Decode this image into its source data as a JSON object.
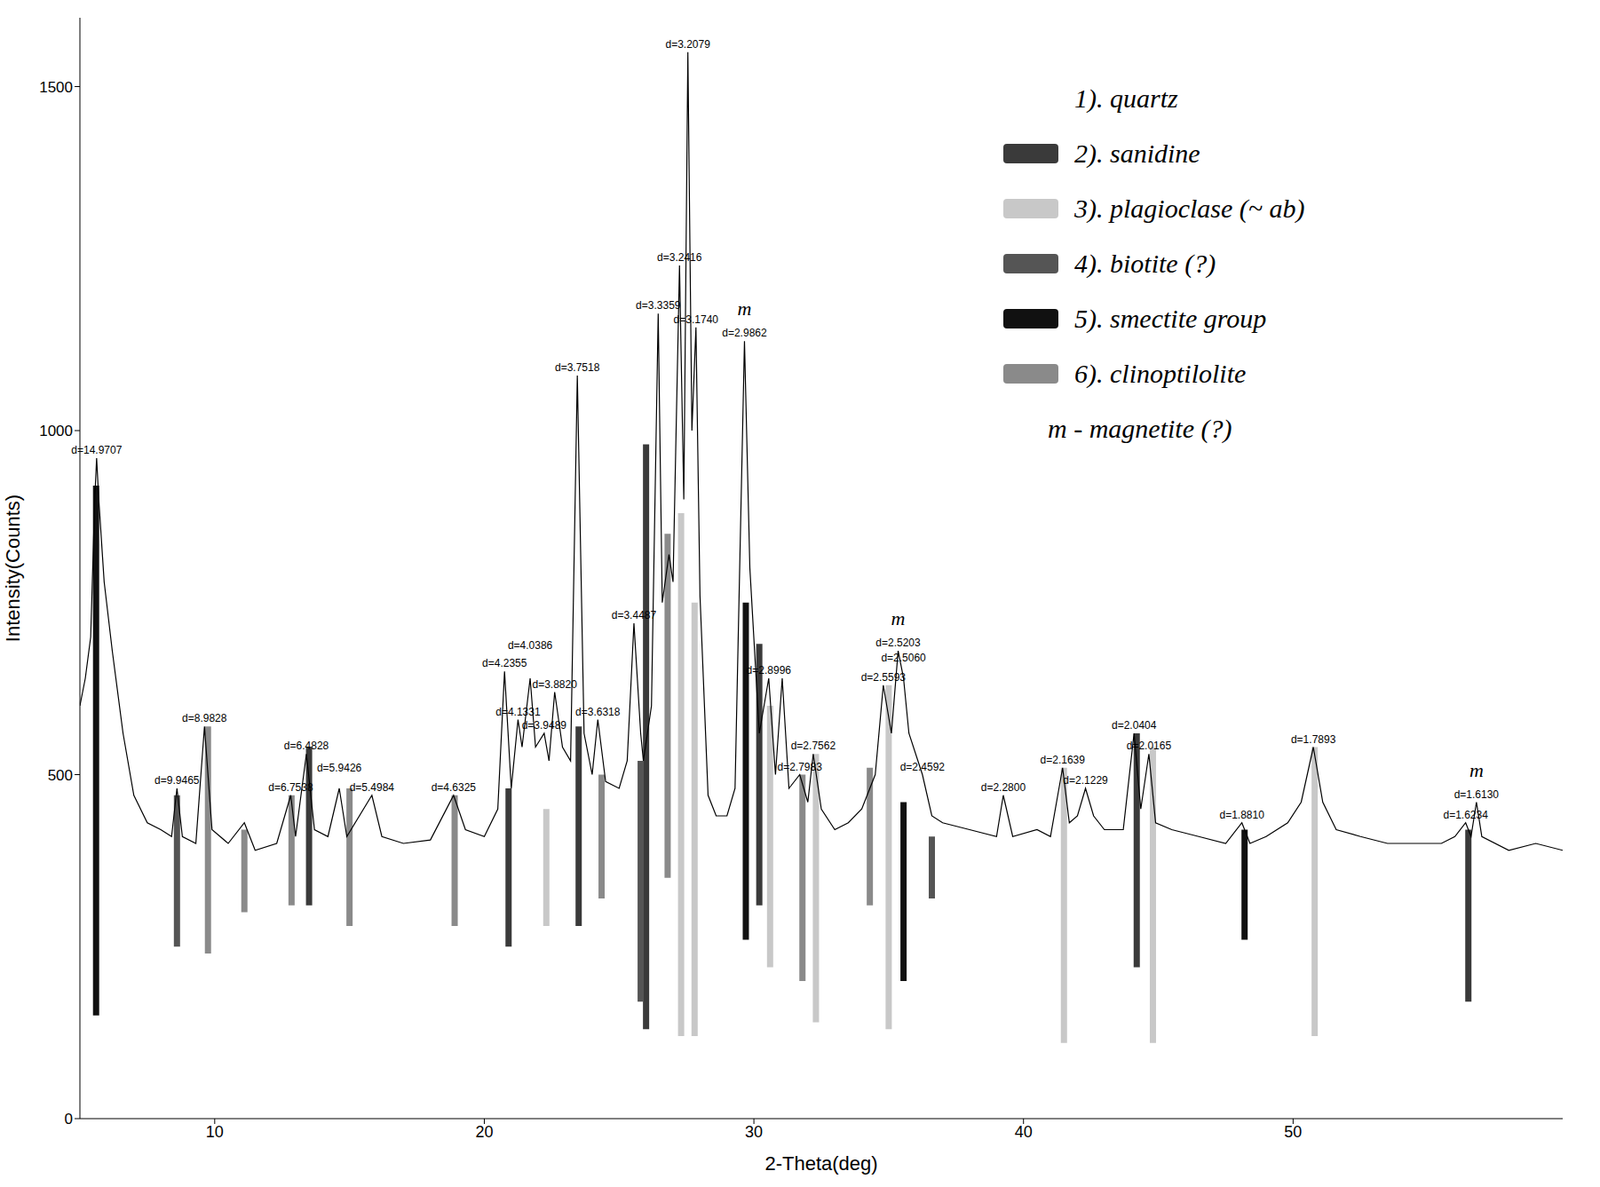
{
  "chart_data": {
    "type": "line",
    "x_label": "2-Theta(deg)",
    "y_label": "Intensity(Counts)",
    "xlim": [
      5,
      60
    ],
    "xticks": [
      10,
      20,
      30,
      40,
      50
    ],
    "ylim": [
      0,
      1600
    ],
    "yticks": [
      0,
      500,
      1000,
      1500
    ],
    "color": "#000000",
    "legend": "upper right",
    "x": [
      5.0,
      5.2,
      5.4,
      5.55,
      5.62,
      5.7,
      5.9,
      6.2,
      6.6,
      7.0,
      7.5,
      8.0,
      8.4,
      8.6,
      8.8,
      9.3,
      9.62,
      9.9,
      10.5,
      11.1,
      11.5,
      12.3,
      12.82,
      13.0,
      13.4,
      13.7,
      14.2,
      14.62,
      14.9,
      15.83,
      16.2,
      17.0,
      18.0,
      18.86,
      19.3,
      20.0,
      20.5,
      20.75,
      21.0,
      21.25,
      21.4,
      21.7,
      21.9,
      22.22,
      22.4,
      22.61,
      22.9,
      23.2,
      23.45,
      23.7,
      24.0,
      24.21,
      24.5,
      25.0,
      25.3,
      25.55,
      25.8,
      25.9,
      26.2,
      26.45,
      26.6,
      26.85,
      27.0,
      27.24,
      27.4,
      27.55,
      27.7,
      27.85,
      28.0,
      28.3,
      28.6,
      29.0,
      29.3,
      29.65,
      29.85,
      30.2,
      30.55,
      30.8,
      31.05,
      31.3,
      31.7,
      32.0,
      32.2,
      32.5,
      33.0,
      33.5,
      34.0,
      34.5,
      34.8,
      35.1,
      35.35,
      35.55,
      35.75,
      36.25,
      36.6,
      37.0,
      38.0,
      39.0,
      39.25,
      39.6,
      40.5,
      41.0,
      41.45,
      41.7,
      42.0,
      42.3,
      42.6,
      43.0,
      43.7,
      44.1,
      44.35,
      44.65,
      44.9,
      45.5,
      46.5,
      47.5,
      48.1,
      48.4,
      49.0,
      49.8,
      50.3,
      50.75,
      51.1,
      51.6,
      52.5,
      53.5,
      54.5,
      55.5,
      56.0,
      56.4,
      56.6,
      56.8,
      57.0,
      58.0,
      59.0,
      60.0
    ],
    "values": [
      600,
      640,
      700,
      900,
      960,
      900,
      780,
      680,
      560,
      470,
      430,
      420,
      410,
      480,
      410,
      400,
      570,
      420,
      400,
      430,
      390,
      400,
      470,
      410,
      530,
      420,
      410,
      480,
      410,
      470,
      410,
      400,
      405,
      470,
      420,
      410,
      450,
      650,
      480,
      580,
      540,
      640,
      540,
      560,
      520,
      620,
      540,
      520,
      1080,
      560,
      500,
      580,
      490,
      480,
      520,
      720,
      560,
      520,
      600,
      1170,
      750,
      820,
      780,
      1240,
      900,
      1550,
      1000,
      1150,
      760,
      470,
      440,
      440,
      480,
      1130,
      800,
      560,
      640,
      500,
      640,
      480,
      500,
      460,
      530,
      450,
      420,
      430,
      450,
      500,
      630,
      560,
      680,
      640,
      560,
      500,
      440,
      430,
      420,
      410,
      470,
      410,
      420,
      410,
      510,
      430,
      440,
      480,
      440,
      420,
      420,
      560,
      450,
      530,
      430,
      420,
      410,
      400,
      430,
      400,
      410,
      430,
      460,
      540,
      460,
      420,
      410,
      400,
      400,
      400,
      410,
      430,
      410,
      460,
      410,
      390,
      400,
      390
    ],
    "peak_labels": [
      {
        "label": "d=14.9707",
        "x": 5.62,
        "y": 960
      },
      {
        "label": "d=9.9465",
        "x": 8.6,
        "y": 480
      },
      {
        "label": "d=8.9828",
        "x": 9.62,
        "y": 570
      },
      {
        "label": "d=6.7538",
        "x": 12.82,
        "y": 470
      },
      {
        "label": "d=6.4828",
        "x": 13.4,
        "y": 530
      },
      {
        "label": "d=5.9426",
        "x": 14.62,
        "y": 480
      },
      {
        "label": "d=5.4984",
        "x": 15.83,
        "y": 470
      },
      {
        "label": "d=4.6325",
        "x": 18.86,
        "y": 470
      },
      {
        "label": "d=4.2355",
        "x": 20.75,
        "y": 650
      },
      {
        "label": "d=4.1331",
        "x": 21.25,
        "y": 580
      },
      {
        "label": "d=4.0386",
        "x": 21.7,
        "y": 640
      },
      {
        "label": "d=3.9489",
        "x": 22.22,
        "y": 560
      },
      {
        "label": "d=3.8820",
        "x": 22.61,
        "y": 620
      },
      {
        "label": "d=3.7518",
        "x": 23.45,
        "y": 1080
      },
      {
        "label": "d=3.6318",
        "x": 24.21,
        "y": 580
      },
      {
        "label": "d=3.4487",
        "x": 25.55,
        "y": 720
      },
      {
        "label": "d=3.3359",
        "x": 26.45,
        "y": 1170
      },
      {
        "label": "d=3.2416",
        "x": 27.24,
        "y": 1240
      },
      {
        "label": "d=3.2079",
        "x": 27.55,
        "y": 1550
      },
      {
        "label": "d=3.1740",
        "x": 27.85,
        "y": 1150
      },
      {
        "label": "d=2.9862",
        "x": 29.65,
        "y": 1130
      },
      {
        "label": "d=2.8996",
        "x": 30.55,
        "y": 640
      },
      {
        "label": "d=2.7983",
        "x": 31.7,
        "y": 500
      },
      {
        "label": "d=2.7562",
        "x": 32.2,
        "y": 530
      },
      {
        "label": "d=2.5593",
        "x": 34.8,
        "y": 630
      },
      {
        "label": "d=2.5203",
        "x": 35.35,
        "y": 680
      },
      {
        "label": "d=2.5060",
        "x": 35.55,
        "y": 640
      },
      {
        "label": "d=2.4592",
        "x": 36.25,
        "y": 500
      },
      {
        "label": "d=2.2800",
        "x": 39.25,
        "y": 470
      },
      {
        "label": "d=2.1639",
        "x": 41.45,
        "y": 510
      },
      {
        "label": "d=2.1229",
        "x": 42.3,
        "y": 480
      },
      {
        "label": "d=2.0404",
        "x": 44.1,
        "y": 560
      },
      {
        "label": "d=2.0165",
        "x": 44.65,
        "y": 530
      },
      {
        "label": "d=1.8810",
        "x": 48.1,
        "y": 430
      },
      {
        "label": "d=1.7893",
        "x": 50.75,
        "y": 540
      },
      {
        "label": "d=1.6234",
        "x": 56.4,
        "y": 430
      },
      {
        "label": "d=1.6130",
        "x": 56.8,
        "y": 460
      }
    ],
    "annotations": [
      {
        "text": "m",
        "x": 29.65,
        "y": 1130
      },
      {
        "text": "m",
        "x": 35.35,
        "y": 680
      },
      {
        "text": "m",
        "x": 56.8,
        "y": 460
      }
    ],
    "phases": [
      {
        "name": "1). quartz"
      },
      {
        "name": "2). sanidine",
        "color": "#3a3a3a",
        "sticks": [
          [
            13.5,
            310,
            540
          ],
          [
            20.9,
            250,
            480
          ],
          [
            23.5,
            280,
            570
          ],
          [
            26.0,
            130,
            980
          ],
          [
            30.2,
            310,
            690
          ],
          [
            44.2,
            220,
            560
          ],
          [
            56.5,
            170,
            420
          ]
        ]
      },
      {
        "name": "3). plagioclase (~ ab)",
        "color": "#c8c8c8",
        "sticks": [
          [
            22.3,
            280,
            450
          ],
          [
            27.3,
            120,
            880
          ],
          [
            27.8,
            120,
            750
          ],
          [
            30.6,
            220,
            600
          ],
          [
            32.3,
            140,
            530
          ],
          [
            35.0,
            130,
            630
          ],
          [
            41.5,
            110,
            510
          ],
          [
            44.8,
            110,
            540
          ],
          [
            50.8,
            120,
            540
          ]
        ]
      },
      {
        "name": "4). biotite (?)",
        "color": "#555555",
        "sticks": [
          [
            8.6,
            250,
            470
          ],
          [
            25.8,
            170,
            520
          ],
          [
            36.6,
            320,
            410
          ]
        ]
      },
      {
        "name": "5). smectite group",
        "color": "#111111",
        "sticks": [
          [
            5.6,
            150,
            920
          ],
          [
            29.7,
            260,
            750
          ],
          [
            35.55,
            200,
            460
          ],
          [
            48.2,
            260,
            420
          ]
        ]
      },
      {
        "name": "6). clinoptilolite",
        "color": "#8a8a8a",
        "sticks": [
          [
            9.75,
            240,
            570
          ],
          [
            11.1,
            300,
            420
          ],
          [
            12.85,
            310,
            470
          ],
          [
            15.0,
            280,
            480
          ],
          [
            18.9,
            280,
            470
          ],
          [
            24.35,
            320,
            500
          ],
          [
            26.8,
            350,
            850
          ],
          [
            31.8,
            200,
            500
          ],
          [
            34.3,
            310,
            510
          ]
        ]
      }
    ],
    "legend_note": "m - magnetite (?)"
  }
}
